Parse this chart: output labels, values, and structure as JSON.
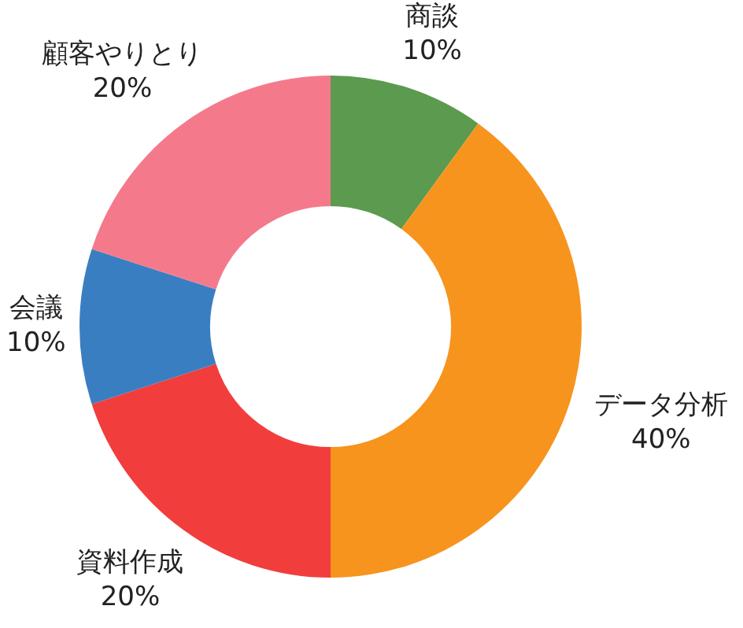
{
  "chart_data": {
    "type": "donut",
    "categories": [
      "商談",
      "データ分析",
      "資料作成",
      "会議",
      "顧客やりとり"
    ],
    "values": [
      10,
      40,
      20,
      10,
      20
    ],
    "value_labels": [
      "10%",
      "40%",
      "20%",
      "10%",
      "20%"
    ],
    "colors": [
      "#5b9a4f",
      "#f7941e",
      "#f23d3d",
      "#3a7ec2",
      "#f47a8b"
    ],
    "legend": false
  }
}
